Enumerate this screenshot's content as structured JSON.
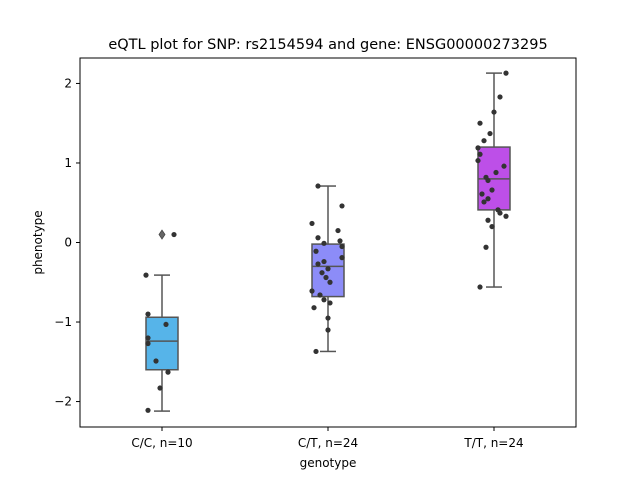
{
  "chart_data": {
    "type": "box",
    "title": "eQTL plot for SNP: rs2154594 and gene: ENSG00000273295",
    "xlabel": "genotype",
    "ylabel": "phenotype",
    "ylim": [
      -2.32,
      2.32
    ],
    "yticks": [
      -2,
      -1,
      0,
      1,
      2
    ],
    "ytick_labels": [
      "−2",
      "−1",
      "0",
      "1",
      "2"
    ],
    "grid": false,
    "legend": "none",
    "categories": [
      "C/C, n=10",
      "C/T, n=24",
      "T/T, n=24"
    ],
    "boxes": [
      {
        "category": "C/C, n=10",
        "color": "#56b4e9",
        "q1": -1.6,
        "median": -1.24,
        "q3": -0.94,
        "whisker_low": -2.12,
        "whisker_high": -0.41,
        "outliers": [
          0.1
        ]
      },
      {
        "category": "C/T, n=24",
        "color": "#8c8cf8",
        "q1": -0.68,
        "median": -0.3,
        "q3": -0.02,
        "whisker_low": -1.37,
        "whisker_high": 0.71,
        "outliers": []
      },
      {
        "category": "T/T, n=24",
        "color": "#bd4fe8",
        "q1": 0.41,
        "median": 0.8,
        "q3": 1.2,
        "whisker_low": -0.56,
        "whisker_high": 2.13,
        "outliers": []
      }
    ],
    "points": [
      [
        -2.11,
        -1.83,
        -1.63,
        -1.49,
        -1.27,
        -1.2,
        -1.03,
        -0.9,
        -0.41,
        0.1
      ],
      [
        -1.37,
        -1.1,
        -0.95,
        -0.82,
        -0.76,
        -0.72,
        -0.66,
        -0.61,
        -0.5,
        -0.44,
        -0.38,
        -0.33,
        -0.27,
        -0.24,
        -0.19,
        -0.11,
        -0.05,
        -0.01,
        0.02,
        0.06,
        0.15,
        0.24,
        0.46,
        0.71
      ],
      [
        -0.56,
        -0.06,
        0.2,
        0.28,
        0.33,
        0.37,
        0.41,
        0.51,
        0.55,
        0.61,
        0.66,
        0.78,
        0.82,
        0.88,
        0.96,
        1.03,
        1.11,
        1.19,
        1.28,
        1.37,
        1.5,
        1.64,
        1.83,
        2.13
      ]
    ]
  }
}
